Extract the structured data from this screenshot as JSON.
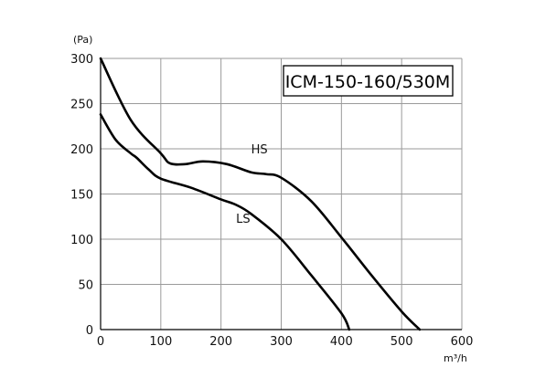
{
  "chart_data": {
    "type": "line",
    "title": "ICM-150-160/530M",
    "xlabel": "m³/h",
    "ylabel": "(Pa)",
    "xlim": [
      0,
      600
    ],
    "ylim": [
      0,
      300
    ],
    "x_ticks": [
      0,
      100,
      200,
      300,
      400,
      500,
      600
    ],
    "y_ticks": [
      0,
      50,
      100,
      150,
      200,
      250,
      300
    ],
    "grid": true,
    "series": [
      {
        "name": "HS",
        "x": [
          0,
          50,
          100,
          115,
          140,
          170,
          210,
          250,
          275,
          300,
          350,
          400,
          450,
          500,
          530
        ],
        "y": [
          300,
          232,
          195,
          184,
          183,
          186,
          183,
          174,
          172,
          168,
          142,
          102,
          60,
          20,
          0
        ]
      },
      {
        "name": "LS",
        "x": [
          0,
          25,
          50,
          60,
          80,
          100,
          150,
          200,
          225,
          250,
          300,
          350,
          400,
          413
        ],
        "y": [
          238,
          210,
          195,
          190,
          177,
          167,
          157,
          144,
          138,
          128,
          100,
          60,
          18,
          0
        ]
      }
    ]
  }
}
